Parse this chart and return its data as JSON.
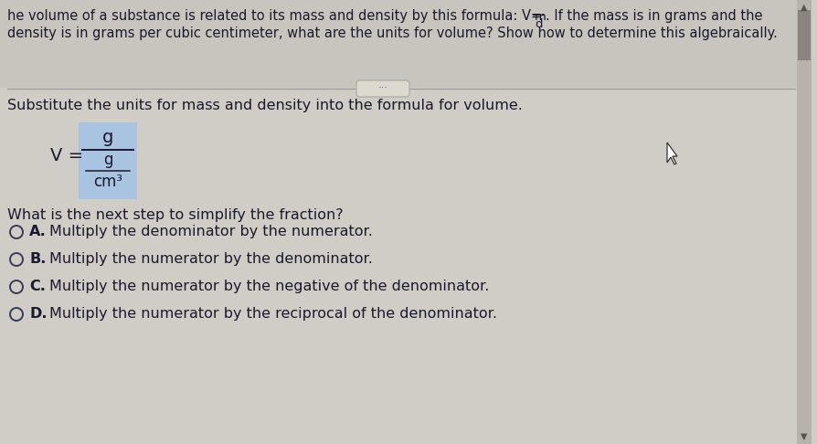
{
  "bg_top": "#c8c4be",
  "bg_main": "#d0ccc6",
  "text_color": "#1a1a2e",
  "text_color_dark": "#2a2a3e",
  "top_line1": "he volume of a substance is related to its mass and density by this formula: V=",
  "top_line1b": ". If the mass is in grams and the",
  "top_line2": "density is in grams per cubic centimeter, what are the units for volume? Show how to determine this algebraically.",
  "subtitle": "Substitute the units for mass and density into the formula for volume.",
  "question": "What is the next step to simplify the fraction?",
  "option_A": "A. Multiply the denominator by the numerator.",
  "option_B": "B. Multiply the numerator by the denominator.",
  "option_C": "C. Multiply the numerator by the negative of the denominator.",
  "option_D": "D. Multiply the numerator by the reciprocal of the denominator.",
  "formula_box_color": "#a8c4e0",
  "scrollbar_track": "#b8b2ac",
  "scrollbar_thumb": "#8a8480",
  "font_size_top": 10.5,
  "font_size_body": 11.5,
  "font_size_formula": 13,
  "font_size_options": 11.5
}
